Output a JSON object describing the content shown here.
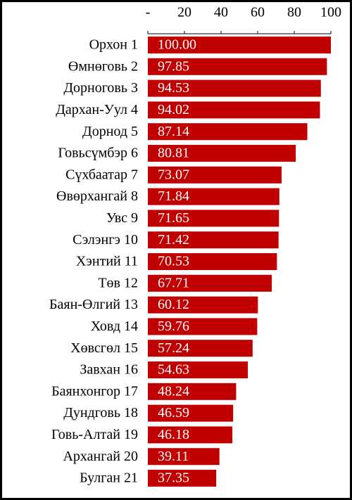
{
  "chart_data": {
    "type": "bar",
    "orientation": "horizontal",
    "color": "#c00000",
    "categories": [
      "Орхон 1",
      "Өмнөговь 2",
      "Дорноговь 3",
      "Дархан-Уул 4",
      "Дорнод 5",
      "Говьсүмбэр 6",
      "Сүхбаатар 7",
      "Өвөрхангай 8",
      "Увс 9",
      "Сэлэнгэ 10",
      "Хэнтий 11",
      "Төв 12",
      "Баян-Өлгий 13",
      "Ховд 14",
      "Хөвсгөл 15",
      "Завхан 16",
      "Баянхонгор 17",
      "Дундговь 18",
      "Говь-Алтай 19",
      "Архангай 20",
      "Булган 21"
    ],
    "values": [
      100.0,
      97.85,
      94.53,
      94.02,
      87.14,
      80.81,
      73.07,
      71.84,
      71.65,
      71.42,
      70.53,
      67.71,
      60.12,
      59.76,
      57.24,
      54.63,
      48.24,
      46.59,
      46.18,
      39.11,
      37.35
    ],
    "value_labels": [
      "100.00",
      "97.85",
      "94.53",
      "94.02",
      "87.14",
      "80.81",
      "73.07",
      "71.84",
      "71.65",
      "71.42",
      "70.53",
      "67.71",
      "60.12",
      "59.76",
      "57.24",
      "54.63",
      "48.24",
      "46.59",
      "46.18",
      "39.11",
      "37.35"
    ],
    "xlim": [
      0,
      100
    ],
    "xticks": [
      {
        "value": 0,
        "label": "-"
      },
      20,
      40,
      60,
      80,
      100
    ]
  }
}
